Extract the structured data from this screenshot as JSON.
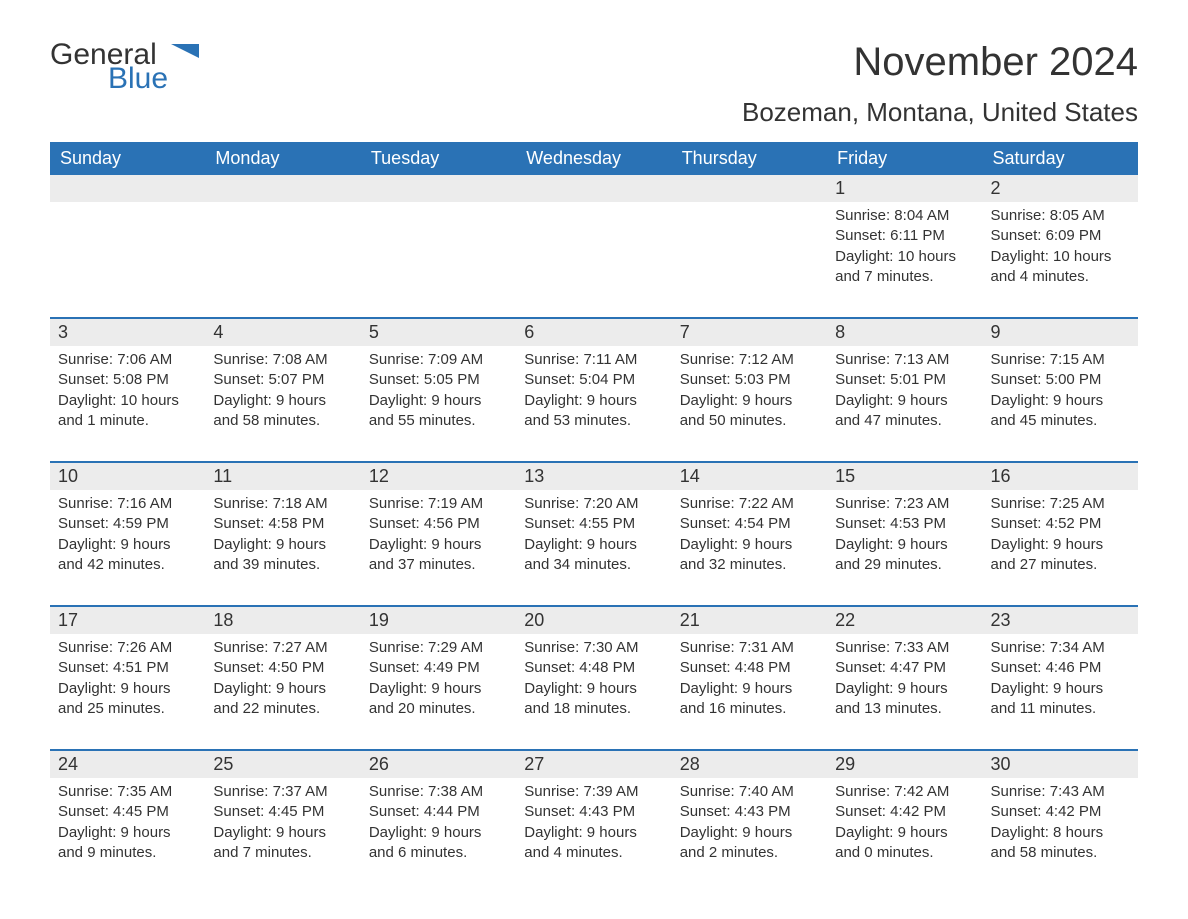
{
  "logo": {
    "general": "General",
    "blue": "Blue",
    "accent_color": "#2a72b5"
  },
  "header": {
    "month_title": "November 2024",
    "location": "Bozeman, Montana, United States"
  },
  "calendar": {
    "type": "calendar-table",
    "accent_color": "#2a72b5",
    "header_bg_color": "#2a72b5",
    "header_text_color": "#ffffff",
    "daynum_bg_color": "#ececec",
    "text_color": "#333333",
    "background_color": "#ffffff",
    "columns": 7,
    "rows": 5,
    "weekday_fontsize": 18,
    "daynum_fontsize": 18,
    "body_fontsize": 15,
    "weekdays": [
      "Sunday",
      "Monday",
      "Tuesday",
      "Wednesday",
      "Thursday",
      "Friday",
      "Saturday"
    ],
    "weeks": [
      [
        null,
        null,
        null,
        null,
        null,
        {
          "day": "1",
          "sunrise": "Sunrise: 8:04 AM",
          "sunset": "Sunset: 6:11 PM",
          "daylight1": "Daylight: 10 hours",
          "daylight2": "and 7 minutes."
        },
        {
          "day": "2",
          "sunrise": "Sunrise: 8:05 AM",
          "sunset": "Sunset: 6:09 PM",
          "daylight1": "Daylight: 10 hours",
          "daylight2": "and 4 minutes."
        }
      ],
      [
        {
          "day": "3",
          "sunrise": "Sunrise: 7:06 AM",
          "sunset": "Sunset: 5:08 PM",
          "daylight1": "Daylight: 10 hours",
          "daylight2": "and 1 minute."
        },
        {
          "day": "4",
          "sunrise": "Sunrise: 7:08 AM",
          "sunset": "Sunset: 5:07 PM",
          "daylight1": "Daylight: 9 hours",
          "daylight2": "and 58 minutes."
        },
        {
          "day": "5",
          "sunrise": "Sunrise: 7:09 AM",
          "sunset": "Sunset: 5:05 PM",
          "daylight1": "Daylight: 9 hours",
          "daylight2": "and 55 minutes."
        },
        {
          "day": "6",
          "sunrise": "Sunrise: 7:11 AM",
          "sunset": "Sunset: 5:04 PM",
          "daylight1": "Daylight: 9 hours",
          "daylight2": "and 53 minutes."
        },
        {
          "day": "7",
          "sunrise": "Sunrise: 7:12 AM",
          "sunset": "Sunset: 5:03 PM",
          "daylight1": "Daylight: 9 hours",
          "daylight2": "and 50 minutes."
        },
        {
          "day": "8",
          "sunrise": "Sunrise: 7:13 AM",
          "sunset": "Sunset: 5:01 PM",
          "daylight1": "Daylight: 9 hours",
          "daylight2": "and 47 minutes."
        },
        {
          "day": "9",
          "sunrise": "Sunrise: 7:15 AM",
          "sunset": "Sunset: 5:00 PM",
          "daylight1": "Daylight: 9 hours",
          "daylight2": "and 45 minutes."
        }
      ],
      [
        {
          "day": "10",
          "sunrise": "Sunrise: 7:16 AM",
          "sunset": "Sunset: 4:59 PM",
          "daylight1": "Daylight: 9 hours",
          "daylight2": "and 42 minutes."
        },
        {
          "day": "11",
          "sunrise": "Sunrise: 7:18 AM",
          "sunset": "Sunset: 4:58 PM",
          "daylight1": "Daylight: 9 hours",
          "daylight2": "and 39 minutes."
        },
        {
          "day": "12",
          "sunrise": "Sunrise: 7:19 AM",
          "sunset": "Sunset: 4:56 PM",
          "daylight1": "Daylight: 9 hours",
          "daylight2": "and 37 minutes."
        },
        {
          "day": "13",
          "sunrise": "Sunrise: 7:20 AM",
          "sunset": "Sunset: 4:55 PM",
          "daylight1": "Daylight: 9 hours",
          "daylight2": "and 34 minutes."
        },
        {
          "day": "14",
          "sunrise": "Sunrise: 7:22 AM",
          "sunset": "Sunset: 4:54 PM",
          "daylight1": "Daylight: 9 hours",
          "daylight2": "and 32 minutes."
        },
        {
          "day": "15",
          "sunrise": "Sunrise: 7:23 AM",
          "sunset": "Sunset: 4:53 PM",
          "daylight1": "Daylight: 9 hours",
          "daylight2": "and 29 minutes."
        },
        {
          "day": "16",
          "sunrise": "Sunrise: 7:25 AM",
          "sunset": "Sunset: 4:52 PM",
          "daylight1": "Daylight: 9 hours",
          "daylight2": "and 27 minutes."
        }
      ],
      [
        {
          "day": "17",
          "sunrise": "Sunrise: 7:26 AM",
          "sunset": "Sunset: 4:51 PM",
          "daylight1": "Daylight: 9 hours",
          "daylight2": "and 25 minutes."
        },
        {
          "day": "18",
          "sunrise": "Sunrise: 7:27 AM",
          "sunset": "Sunset: 4:50 PM",
          "daylight1": "Daylight: 9 hours",
          "daylight2": "and 22 minutes."
        },
        {
          "day": "19",
          "sunrise": "Sunrise: 7:29 AM",
          "sunset": "Sunset: 4:49 PM",
          "daylight1": "Daylight: 9 hours",
          "daylight2": "and 20 minutes."
        },
        {
          "day": "20",
          "sunrise": "Sunrise: 7:30 AM",
          "sunset": "Sunset: 4:48 PM",
          "daylight1": "Daylight: 9 hours",
          "daylight2": "and 18 minutes."
        },
        {
          "day": "21",
          "sunrise": "Sunrise: 7:31 AM",
          "sunset": "Sunset: 4:48 PM",
          "daylight1": "Daylight: 9 hours",
          "daylight2": "and 16 minutes."
        },
        {
          "day": "22",
          "sunrise": "Sunrise: 7:33 AM",
          "sunset": "Sunset: 4:47 PM",
          "daylight1": "Daylight: 9 hours",
          "daylight2": "and 13 minutes."
        },
        {
          "day": "23",
          "sunrise": "Sunrise: 7:34 AM",
          "sunset": "Sunset: 4:46 PM",
          "daylight1": "Daylight: 9 hours",
          "daylight2": "and 11 minutes."
        }
      ],
      [
        {
          "day": "24",
          "sunrise": "Sunrise: 7:35 AM",
          "sunset": "Sunset: 4:45 PM",
          "daylight1": "Daylight: 9 hours",
          "daylight2": "and 9 minutes."
        },
        {
          "day": "25",
          "sunrise": "Sunrise: 7:37 AM",
          "sunset": "Sunset: 4:45 PM",
          "daylight1": "Daylight: 9 hours",
          "daylight2": "and 7 minutes."
        },
        {
          "day": "26",
          "sunrise": "Sunrise: 7:38 AM",
          "sunset": "Sunset: 4:44 PM",
          "daylight1": "Daylight: 9 hours",
          "daylight2": "and 6 minutes."
        },
        {
          "day": "27",
          "sunrise": "Sunrise: 7:39 AM",
          "sunset": "Sunset: 4:43 PM",
          "daylight1": "Daylight: 9 hours",
          "daylight2": "and 4 minutes."
        },
        {
          "day": "28",
          "sunrise": "Sunrise: 7:40 AM",
          "sunset": "Sunset: 4:43 PM",
          "daylight1": "Daylight: 9 hours",
          "daylight2": "and 2 minutes."
        },
        {
          "day": "29",
          "sunrise": "Sunrise: 7:42 AM",
          "sunset": "Sunset: 4:42 PM",
          "daylight1": "Daylight: 9 hours",
          "daylight2": "and 0 minutes."
        },
        {
          "day": "30",
          "sunrise": "Sunrise: 7:43 AM",
          "sunset": "Sunset: 4:42 PM",
          "daylight1": "Daylight: 8 hours",
          "daylight2": "and 58 minutes."
        }
      ]
    ]
  }
}
